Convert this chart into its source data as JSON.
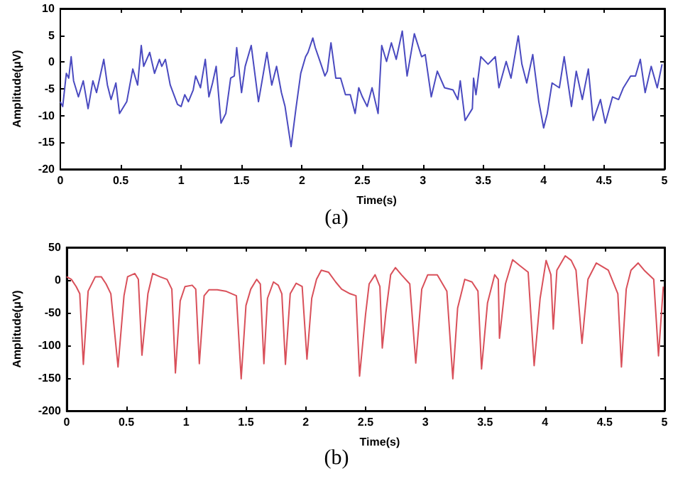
{
  "chart_data": [
    {
      "type": "line",
      "xlabel": "Time(s)",
      "ylabel": "Amplitude(μV)",
      "annotations": [
        "(a)"
      ],
      "xlim": [
        0,
        5
      ],
      "xticks": [
        0,
        0.5,
        1,
        1.5,
        2,
        2.5,
        3,
        3.5,
        4,
        4.5,
        5
      ],
      "ylim": [
        -20,
        10
      ],
      "yticks": [
        -20,
        -15,
        -10,
        -5,
        0,
        5,
        10
      ],
      "grid": false,
      "marker": "none",
      "line_style": "solid",
      "series": [
        {
          "color": "#4a4ac0",
          "x": [
            0,
            0.02,
            0.05,
            0.07,
            0.09,
            0.11,
            0.15,
            0.19,
            0.23,
            0.27,
            0.3,
            0.36,
            0.39,
            0.42,
            0.46,
            0.49,
            0.55,
            0.6,
            0.64,
            0.67,
            0.69,
            0.74,
            0.78,
            0.82,
            0.84,
            0.87,
            0.91,
            0.97,
            1,
            1.03,
            1.06,
            1.1,
            1.12,
            1.16,
            1.2,
            1.23,
            1.26,
            1.29,
            1.33,
            1.37,
            1.41,
            1.44,
            1.46,
            1.5,
            1.53,
            1.58,
            1.64,
            1.67,
            1.71,
            1.75,
            1.79,
            1.83,
            1.86,
            1.91,
            1.95,
            1.99,
            2.03,
            2.05,
            2.09,
            2.11,
            2.15,
            2.19,
            2.21,
            2.24,
            2.28,
            2.32,
            2.36,
            2.4,
            2.44,
            2.47,
            2.5,
            2.54,
            2.58,
            2.63,
            2.66,
            2.7,
            2.74,
            2.78,
            2.83,
            2.87,
            2.93,
            2.99,
            3.02,
            3.07,
            3.12,
            3.18,
            3.25,
            3.29,
            3.31,
            3.35,
            3.41,
            3.42,
            3.44,
            3.48,
            3.54,
            3.6,
            3.63,
            3.69,
            3.73,
            3.79,
            3.82,
            3.86,
            3.91,
            3.96,
            4,
            4.03,
            4.07,
            4.13,
            4.17,
            4.23,
            4.27,
            4.32,
            4.37,
            4.41,
            4.47,
            4.51,
            4.57,
            4.62,
            4.66,
            4.72,
            4.76,
            4.8,
            4.84,
            4.89,
            4.94,
            4.98
          ],
          "values": [
            -7.4,
            -8.3,
            -2.1,
            -3,
            1,
            -3.5,
            -6.5,
            -3.5,
            -8.7,
            -3.5,
            -5.7,
            0.5,
            -4.3,
            -7,
            -3.9,
            -9.6,
            -7.4,
            -1.3,
            -4.3,
            3.1,
            -0.8,
            1.8,
            -2.1,
            0.5,
            -0.8,
            0.5,
            -4.3,
            -7.9,
            -8.3,
            -6.1,
            -7.4,
            -5.2,
            -2.6,
            -4.8,
            0.5,
            -6.5,
            -3.9,
            -0.8,
            -11.4,
            -9.6,
            -3,
            -2.6,
            2.7,
            -5.7,
            -0.8,
            3.1,
            -7.4,
            -3.5,
            1.8,
            -4.3,
            -0.8,
            -5.7,
            -8.3,
            -15.8,
            -8.7,
            -2.1,
            1,
            1.8,
            4.5,
            2.7,
            0.1,
            -2.6,
            -1.7,
            3.6,
            -3,
            -3,
            -6.1,
            -6.1,
            -9.6,
            -4.8,
            -6.5,
            -8.3,
            -4.8,
            -9.6,
            3.1,
            0.1,
            3.6,
            0.5,
            5.8,
            -2.6,
            5.3,
            1,
            1.4,
            -6.5,
            -1.7,
            -4.8,
            -5.2,
            -7,
            -3.5,
            -10.9,
            -8.7,
            -3,
            -6.1,
            1,
            -0.4,
            1,
            -4.8,
            0.1,
            -3,
            4.9,
            -0.4,
            -3.9,
            1.4,
            -7.4,
            -12.3,
            -9.6,
            -3.9,
            -4.8,
            1,
            -8.3,
            -1.7,
            -7,
            -1.3,
            -10.9,
            -7,
            -11.4,
            -6.5,
            -7,
            -4.8,
            -2.6,
            -2.6,
            0.5,
            -5.7,
            -0.8,
            -4.8,
            -0.4
          ]
        }
      ]
    },
    {
      "type": "line",
      "xlabel": "Time(s)",
      "ylabel": "Amplitude(μV)",
      "annotations": [
        "(b)"
      ],
      "xlim": [
        0,
        5
      ],
      "xticks": [
        0,
        0.5,
        1,
        1.5,
        2,
        2.5,
        3,
        3.5,
        4,
        4.5,
        5
      ],
      "ylim": [
        -200,
        50
      ],
      "yticks": [
        -200,
        -150,
        -100,
        -50,
        0,
        50
      ],
      "grid": false,
      "marker": "none",
      "line_style": "solid",
      "series": [
        {
          "color": "#d9505a",
          "x": [
            0,
            0.04,
            0.08,
            0.11,
            0.14,
            0.18,
            0.24,
            0.29,
            0.33,
            0.37,
            0.43,
            0.48,
            0.51,
            0.57,
            0.6,
            0.63,
            0.68,
            0.72,
            0.78,
            0.84,
            0.88,
            0.91,
            0.95,
            0.99,
            1.05,
            1.08,
            1.11,
            1.15,
            1.19,
            1.26,
            1.33,
            1.42,
            1.46,
            1.5,
            1.54,
            1.59,
            1.62,
            1.65,
            1.68,
            1.73,
            1.77,
            1.8,
            1.83,
            1.87,
            1.92,
            1.97,
            2.01,
            2.05,
            2.09,
            2.13,
            2.19,
            2.25,
            2.3,
            2.37,
            2.42,
            2.45,
            2.5,
            2.53,
            2.58,
            2.62,
            2.64,
            2.67,
            2.71,
            2.75,
            2.8,
            2.87,
            2.92,
            2.97,
            3.02,
            3.1,
            3.18,
            3.23,
            3.27,
            3.33,
            3.39,
            3.44,
            3.47,
            3.52,
            3.58,
            3.61,
            3.62,
            3.67,
            3.73,
            3.79,
            3.86,
            3.91,
            3.96,
            4.01,
            4.05,
            4.07,
            4.1,
            4.17,
            4.22,
            4.26,
            4.31,
            4.36,
            4.43,
            4.53,
            4.61,
            4.64,
            4.68,
            4.72,
            4.78,
            4.83,
            4.91,
            4.95,
            4.99
          ],
          "values": [
            5,
            1,
            -10,
            -21,
            -129,
            -17,
            5,
            5,
            -6,
            -21,
            -133,
            -24,
            5,
            10,
            1,
            -115,
            -21,
            10,
            5,
            1,
            -14,
            -142,
            -32,
            -10,
            -8,
            -14,
            -128,
            -24,
            -15,
            -15,
            -17,
            -24,
            -151,
            -39,
            -14,
            1,
            -6,
            -128,
            -28,
            -3,
            -8,
            -21,
            -129,
            -21,
            -5,
            -10,
            -121,
            -28,
            1,
            15,
            12,
            -3,
            -14,
            -21,
            -24,
            -147,
            -53,
            -6,
            8,
            -10,
            -104,
            -50,
            8,
            19,
            8,
            -6,
            -127,
            -14,
            8,
            8,
            -17,
            -151,
            -43,
            1,
            -3,
            -17,
            -136,
            -35,
            8,
            1,
            -89,
            -6,
            31,
            22,
            12,
            -131,
            -28,
            30,
            8,
            -75,
            15,
            37,
            30,
            15,
            -97,
            1,
            26,
            15,
            -21,
            -133,
            -14,
            15,
            26,
            15,
            1,
            -116,
            -10
          ]
        }
      ]
    }
  ]
}
